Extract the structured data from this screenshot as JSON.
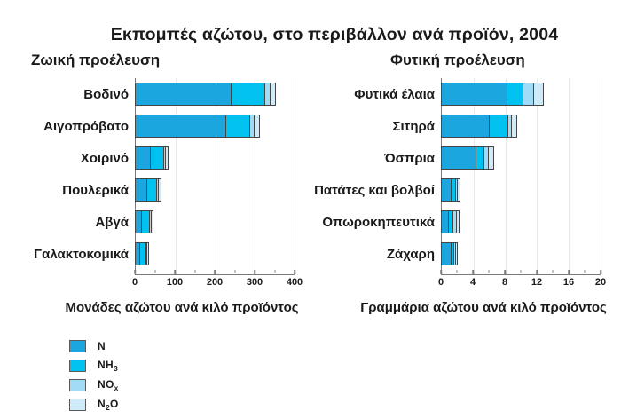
{
  "title": "Εκπομπές αζώτου, στο περιβάλλον ανά προϊόν, 2004",
  "colors": {
    "n": "#1CA6DF",
    "nh3": "#00C1F0",
    "nox": "#9FDBF5",
    "n2o": "#CFEAF9",
    "segment_border": "#454545",
    "axis": "#7a7a7a",
    "grid": "#e9e9e9",
    "text": "#1a1a1a"
  },
  "legend": {
    "items": [
      {
        "name": "N",
        "color_key": "n",
        "parts": [
          {
            "t": "N"
          }
        ]
      },
      {
        "name": "NH3",
        "color_key": "nh3",
        "parts": [
          {
            "t": "NH"
          },
          {
            "t": "3",
            "sub": true
          }
        ]
      },
      {
        "name": "NOx",
        "color_key": "nox",
        "parts": [
          {
            "t": "NO"
          },
          {
            "t": "x",
            "sub": true
          }
        ]
      },
      {
        "name": "N2O",
        "color_key": "n2o",
        "parts": [
          {
            "t": "N"
          },
          {
            "t": "2",
            "sub": true
          },
          {
            "t": "O"
          }
        ]
      }
    ]
  },
  "chart_data": [
    {
      "type": "bar",
      "orientation": "horizontal",
      "stacked": true,
      "title": "Ζωική προέλευση",
      "xlabel": "Μονάδες αζώτου ανά κιλό προϊόντος",
      "xlim": [
        0,
        400
      ],
      "xticks": [
        0,
        100,
        200,
        300,
        400
      ],
      "minor_tick_step": 50,
      "grid": "vertical-major",
      "categories": [
        "Βοδινό",
        "Αιγοπρόβατο",
        "Χοιρινό",
        "Πουλερικά",
        "Αβγά",
        "Γαλακτοκομικά"
      ],
      "series": [
        {
          "name": "N",
          "color_key": "n",
          "values": [
            237,
            225,
            36,
            27,
            14,
            9
          ]
        },
        {
          "name": "NH3",
          "color_key": "nh3",
          "values": [
            83,
            57,
            30,
            22,
            18,
            13
          ]
        },
        {
          "name": "NOx",
          "color_key": "nox",
          "values": [
            11,
            9,
            3,
            3,
            2,
            1
          ]
        },
        {
          "name": "N2O",
          "color_key": "n2o",
          "values": [
            11,
            11,
            4,
            4,
            2,
            2
          ]
        }
      ]
    },
    {
      "type": "bar",
      "orientation": "horizontal",
      "stacked": true,
      "title": "Φυτική προέλευση",
      "xlabel": "Γραμμάρια αζώτου ανά κιλό προϊόντος",
      "xlim": [
        0,
        20
      ],
      "xticks": [
        0,
        4,
        8,
        12,
        16,
        20
      ],
      "minor_tick_step": 2,
      "grid": "vertical-major",
      "categories": [
        "Φυτικά έλαια",
        "Σιτηρά",
        "Όσπρια",
        "Πατάτες και βολβοί",
        "Οπωροκηπευτικά",
        "Ζάχαρη"
      ],
      "series": [
        {
          "name": "N",
          "color_key": "n",
          "values": [
            8.1,
            5.9,
            4.2,
            1.1,
            0.8,
            1.1
          ]
        },
        {
          "name": "NH3",
          "color_key": "nh3",
          "values": [
            1.9,
            2.2,
            0.9,
            0.45,
            0.4,
            0.25
          ]
        },
        {
          "name": "NOx",
          "color_key": "nox",
          "values": [
            1.2,
            0.4,
            0.45,
            0.15,
            0.4,
            0.1
          ]
        },
        {
          "name": "N2O",
          "color_key": "n2o",
          "values": [
            1.1,
            0.5,
            0.55,
            0.2,
            0.2,
            0.15
          ]
        }
      ]
    }
  ]
}
